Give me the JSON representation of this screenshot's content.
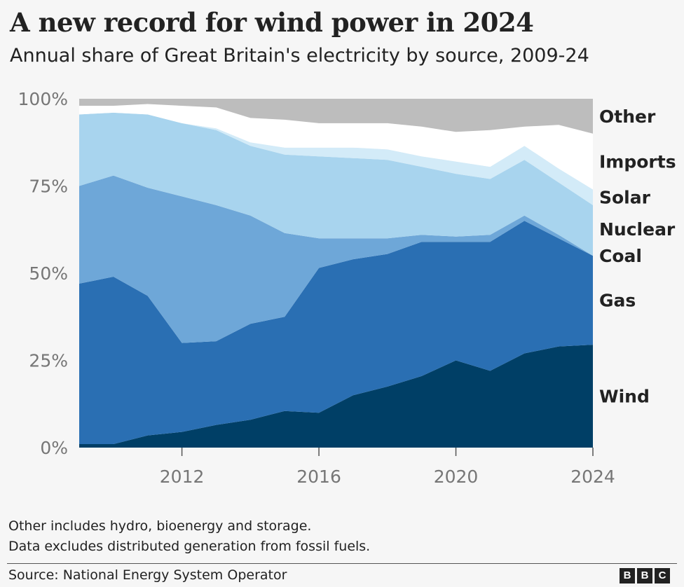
{
  "title": "A new record for wind power in 2024",
  "subtitle": "Annual share of Great Britain's electricity by source, 2009-24",
  "notes": [
    "Other includes hydro, bioenergy and storage.",
    "Data excludes distributed generation from fossil fuels."
  ],
  "source": "Source: National Energy System Operator",
  "logo": [
    "B",
    "B",
    "C"
  ],
  "chart_data": {
    "type": "area",
    "stacked": true,
    "x": [
      2009,
      2010,
      2011,
      2012,
      2013,
      2014,
      2015,
      2016,
      2017,
      2018,
      2019,
      2020,
      2021,
      2022,
      2023,
      2024
    ],
    "x_ticks": [
      "2012",
      "2016",
      "2020",
      "2024"
    ],
    "y_ticks": [
      "0%",
      "25%",
      "50%",
      "75%",
      "100%"
    ],
    "ylim": [
      0,
      100
    ],
    "grid": false,
    "legend": "direct labels at right edge",
    "series": [
      {
        "name": "Wind",
        "color": "#003f66",
        "values": [
          1,
          1,
          3.5,
          4.5,
          6.5,
          8,
          10.5,
          10,
          15,
          17.5,
          20.5,
          25,
          22,
          27,
          29,
          29.5
        ]
      },
      {
        "name": "Gas",
        "color": "#2a6fb3",
        "values": [
          46,
          48,
          40,
          25.5,
          24,
          27.5,
          27,
          41.5,
          39,
          38,
          38.5,
          34,
          37,
          38,
          31,
          25.5
        ]
      },
      {
        "name": "Coal",
        "color": "#6ea7d8",
        "values": [
          28,
          29,
          31,
          42,
          39,
          31,
          24,
          8.5,
          6,
          4.5,
          2,
          1.5,
          2,
          1.5,
          1,
          0
        ]
      },
      {
        "name": "Nuclear",
        "color": "#a8d4ee",
        "values": [
          20.5,
          18,
          21,
          21,
          21.5,
          20,
          22.5,
          23.5,
          23,
          22.5,
          19.5,
          18,
          16,
          16,
          15,
          14.5
        ]
      },
      {
        "name": "Solar",
        "color": "#d3ebf8",
        "values": [
          0,
          0,
          0,
          0,
          0.5,
          1,
          2,
          2.5,
          3,
          3,
          3,
          3.5,
          3.5,
          4,
          4,
          4.5
        ]
      },
      {
        "name": "Imports",
        "color": "#ffffff",
        "values": [
          2.5,
          2,
          3,
          5,
          6,
          7,
          8,
          7,
          7,
          7.5,
          8.5,
          8.5,
          10.5,
          5.5,
          12.5,
          16
        ]
      },
      {
        "name": "Other",
        "color": "#bdbdbd",
        "values": [
          2,
          2,
          1.5,
          2,
          2.5,
          5.5,
          6,
          7,
          7,
          7,
          8,
          9.5,
          9,
          8,
          7.5,
          10
        ]
      }
    ]
  }
}
